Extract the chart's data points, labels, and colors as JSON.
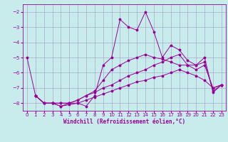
{
  "background_color": "#c8ecec",
  "grid_color": "#aaaacc",
  "line_color": "#990099",
  "xlabel": "Windchill (Refroidissement éolien,°C)",
  "xlabel_color": "#990099",
  "xlim": [
    -0.5,
    23.5
  ],
  "ylim": [
    -8.5,
    -1.5
  ],
  "yticks": [
    -8,
    -7,
    -6,
    -5,
    -4,
    -3,
    -2
  ],
  "xticks": [
    0,
    1,
    2,
    3,
    4,
    5,
    6,
    7,
    8,
    9,
    10,
    11,
    12,
    13,
    14,
    15,
    16,
    17,
    18,
    19,
    20,
    21,
    22,
    23
  ],
  "lines": [
    {
      "x": [
        0,
        1,
        2,
        3,
        4,
        5,
        6,
        7,
        8,
        9,
        10,
        11,
        12,
        13,
        14,
        15,
        16,
        17,
        18,
        19,
        20,
        21,
        22,
        23
      ],
      "y": [
        -5.0,
        -7.5,
        -8.0,
        -8.0,
        -8.0,
        -8.0,
        -8.0,
        -8.2,
        -7.5,
        -5.5,
        -5.0,
        -2.5,
        -3.0,
        -3.2,
        -2.0,
        -3.3,
        -5.0,
        -4.2,
        -4.5,
        -5.2,
        -5.5,
        -5.0,
        -7.3,
        -6.8
      ]
    },
    {
      "x": [
        1,
        2,
        3,
        4,
        5,
        6,
        7,
        8,
        9,
        10,
        11,
        12,
        13,
        14,
        15,
        16,
        17,
        18,
        19,
        20,
        21,
        22,
        23
      ],
      "y": [
        -7.5,
        -8.0,
        -8.0,
        -8.0,
        -8.0,
        -7.8,
        -7.5,
        -7.2,
        -6.5,
        -5.8,
        -5.5,
        -5.2,
        -5.0,
        -4.8,
        -5.0,
        -5.1,
        -5.3,
        -5.5,
        -5.5,
        -5.5,
        -5.3,
        -7.2,
        -6.8
      ]
    },
    {
      "x": [
        1,
        2,
        3,
        4,
        5,
        6,
        7,
        8,
        9,
        10,
        11,
        12,
        13,
        14,
        15,
        16,
        17,
        18,
        19,
        20,
        21,
        22,
        23
      ],
      "y": [
        -7.5,
        -8.0,
        -8.0,
        -8.2,
        -8.0,
        -7.8,
        -7.5,
        -7.3,
        -7.0,
        -6.8,
        -6.5,
        -6.2,
        -6.0,
        -5.8,
        -5.5,
        -5.3,
        -5.0,
        -4.8,
        -5.5,
        -5.8,
        -5.5,
        -7.0,
        -6.8
      ]
    },
    {
      "x": [
        1,
        2,
        3,
        4,
        5,
        6,
        7,
        8,
        9,
        10,
        11,
        12,
        13,
        14,
        15,
        16,
        17,
        18,
        19,
        20,
        21,
        22,
        23
      ],
      "y": [
        -7.5,
        -8.0,
        -8.0,
        -8.2,
        -8.1,
        -8.0,
        -7.8,
        -7.6,
        -7.4,
        -7.2,
        -7.0,
        -6.8,
        -6.6,
        -6.5,
        -6.3,
        -6.2,
        -6.0,
        -5.8,
        -6.0,
        -6.2,
        -6.5,
        -7.0,
        -6.8
      ]
    }
  ]
}
